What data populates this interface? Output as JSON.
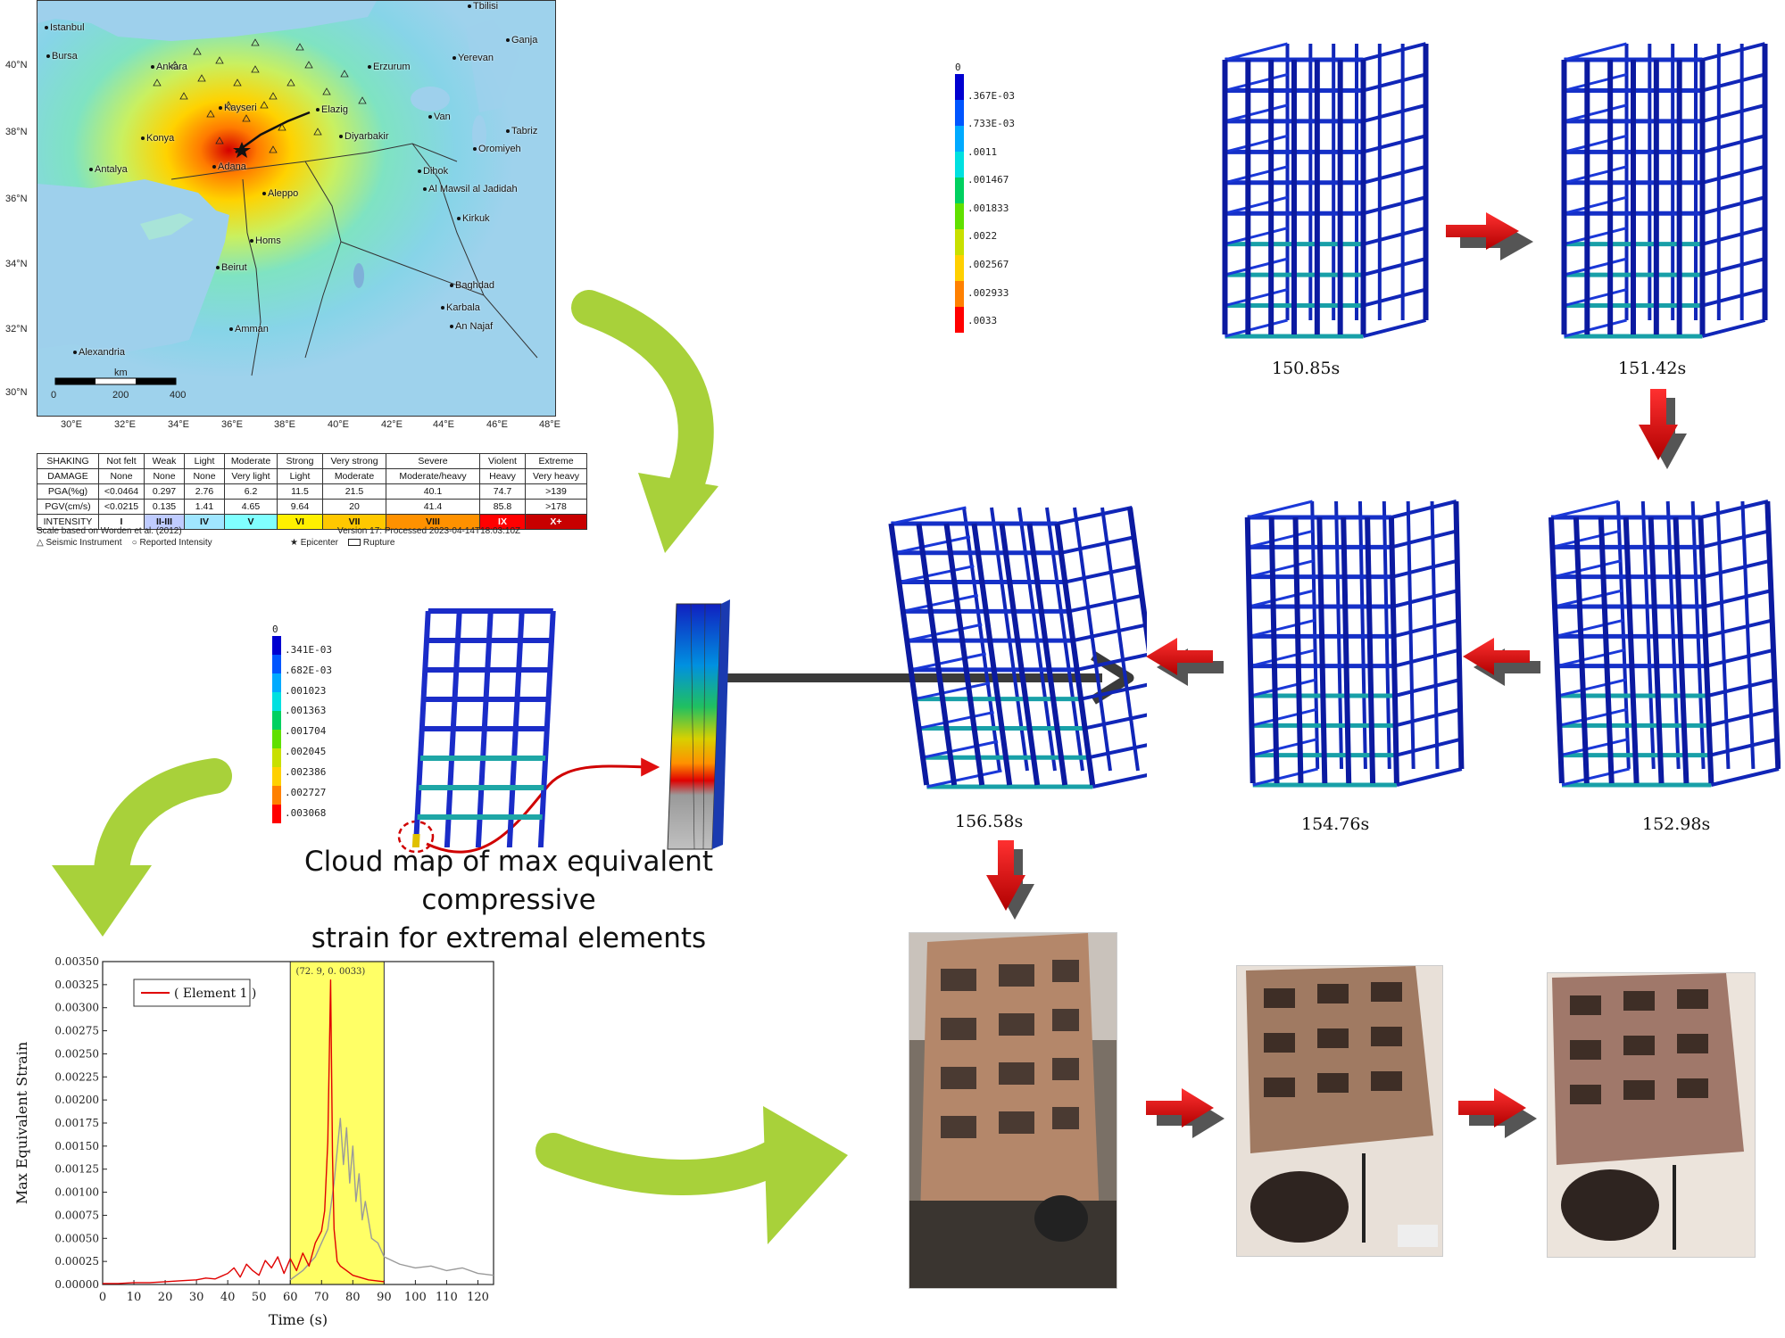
{
  "map": {
    "cities": [
      {
        "name": "Istanbul"
      },
      {
        "name": "Bursa"
      },
      {
        "name": "Ankara"
      },
      {
        "name": "Tbilisi"
      },
      {
        "name": "Ganja"
      },
      {
        "name": "Yerevan"
      },
      {
        "name": "Erzurum"
      },
      {
        "name": "Kayseri"
      },
      {
        "name": "Elazig"
      },
      {
        "name": "Van"
      },
      {
        "name": "Tabriz"
      },
      {
        "name": "Konya"
      },
      {
        "name": "Diyarbakir"
      },
      {
        "name": "Oromiyeh"
      },
      {
        "name": "Antalya"
      },
      {
        "name": "Adana"
      },
      {
        "name": "Dihok"
      },
      {
        "name": "Al Mawsil al Jadidah"
      },
      {
        "name": "Aleppo"
      },
      {
        "name": "Kirkuk"
      },
      {
        "name": "Homs"
      },
      {
        "name": "Beirut"
      },
      {
        "name": "Baghdad"
      },
      {
        "name": "Karbala"
      },
      {
        "name": "An Najaf"
      },
      {
        "name": "Amman"
      },
      {
        "name": "Alexandria"
      }
    ],
    "lat_ticks": [
      "40°N",
      "38°N",
      "36°N",
      "34°N",
      "32°N",
      "30°N"
    ],
    "lon_ticks": [
      "30°E",
      "32°E",
      "34°E",
      "36°E",
      "38°E",
      "40°E",
      "42°E",
      "44°E",
      "46°E",
      "48°E"
    ],
    "scale_unit": "km",
    "scale_ticks": [
      "0",
      "200",
      "400"
    ]
  },
  "intensity_table": {
    "rows": [
      {
        "label": "SHAKING",
        "cells": [
          "Not felt",
          "Weak",
          "Light",
          "Moderate",
          "Strong",
          "Very strong",
          "Severe",
          "Violent",
          "Extreme"
        ]
      },
      {
        "label": "DAMAGE",
        "cells": [
          "None",
          "None",
          "None",
          "Very light",
          "Light",
          "Moderate",
          "Moderate/heavy",
          "Heavy",
          "Very heavy"
        ]
      },
      {
        "label": "PGA(%g)",
        "cells": [
          "<0.0464",
          "0.297",
          "2.76",
          "6.2",
          "11.5",
          "21.5",
          "40.1",
          "74.7",
          ">139"
        ]
      },
      {
        "label": "PGV(cm/s)",
        "cells": [
          "<0.0215",
          "0.135",
          "1.41",
          "4.65",
          "9.64",
          "20",
          "41.4",
          "85.8",
          ">178"
        ]
      },
      {
        "label": "INTENSITY",
        "cells": [
          "I",
          "II-III",
          "IV",
          "V",
          "VI",
          "VII",
          "VIII",
          "IX",
          "X+"
        ]
      }
    ],
    "intensity_colors": [
      "#ffffff",
      "#bfccff",
      "#a0e6ff",
      "#80ffff",
      "#fff000",
      "#ffc800",
      "#ff9100",
      "#ff0000",
      "#c80000"
    ],
    "note_left": "Scale based on Worden et al. (2012)",
    "note_right": "Version 17: Processed 2023-04-14T18:03:10Z",
    "legend": {
      "instrument": "Seismic Instrument",
      "reported": "Reported Intensity",
      "epicenter": "Epicenter",
      "rupture": "Rupture"
    }
  },
  "legend_top": {
    "labels": [
      "0",
      ".367E-03",
      ".733E-03",
      ".0011",
      ".001467",
      ".001833",
      ".0022",
      ".002567",
      ".002933",
      ".0033"
    ]
  },
  "legend_mid": {
    "labels": [
      "0",
      ".341E-03",
      ".682E-03",
      ".001023",
      ".001363",
      ".001704",
      ".002045",
      ".002386",
      ".002727",
      ".003068"
    ]
  },
  "legend_colors": [
    "#0000d0",
    "#0055ff",
    "#00aaff",
    "#00e0e0",
    "#00d060",
    "#60e000",
    "#c8e000",
    "#ffd000",
    "#ff8000",
    "#ff0000"
  ],
  "buildings": {
    "t1": "150.85s",
    "t2": "151.42s",
    "t3": "152.98s",
    "t4": "154.76s",
    "t5": "156.58s"
  },
  "caption": {
    "line1": "Cloud map of max equivalent compressive",
    "line2": "strain for extremal elements"
  },
  "chart_data": {
    "type": "line",
    "title": "",
    "xlabel": "Time (s)",
    "ylabel": "Max Equivalent Strain",
    "xlim": [
      0,
      125
    ],
    "ylim": [
      0,
      0.0035
    ],
    "x_ticks": [
      0,
      10,
      20,
      30,
      40,
      50,
      60,
      70,
      80,
      90,
      100,
      110,
      120
    ],
    "y_ticks": [
      "0.00000",
      "0.00025",
      "0.00050",
      "0.00075",
      "0.00100",
      "0.00125",
      "0.00150",
      "0.00175",
      "0.00200",
      "0.00225",
      "0.00250",
      "0.00275",
      "0.00300",
      "0.00325",
      "0.00350"
    ],
    "highlight_range": [
      60,
      90
    ],
    "annotation": "(72. 9, 0. 0033)",
    "legend": "( Element 1 )",
    "series": [
      {
        "name": "( Element 1 )",
        "color": "#e00000",
        "x": [
          0,
          5,
          10,
          15,
          20,
          25,
          30,
          33,
          36,
          38,
          40,
          42,
          44,
          46,
          48,
          50,
          52,
          54,
          56,
          58,
          60,
          62,
          64,
          66,
          68,
          70,
          71,
          72,
          72.9,
          73.5,
          74,
          75,
          76,
          78,
          80,
          85,
          90
        ],
        "y": [
          1e-05,
          1e-05,
          2e-05,
          2e-05,
          3e-05,
          4e-05,
          5e-05,
          7e-05,
          6e-05,
          9e-05,
          0.00012,
          0.00018,
          8e-05,
          0.00022,
          0.00015,
          0.0001,
          0.00026,
          0.00018,
          0.0003,
          0.00012,
          0.00028,
          0.00015,
          0.00034,
          0.0002,
          0.00045,
          0.00058,
          0.0008,
          0.00155,
          0.0033,
          0.0014,
          0.0006,
          0.00025,
          0.0002,
          0.00015,
          0.0001,
          5e-05,
          3e-05
        ]
      },
      {
        "name": "",
        "color": "#9a9a9a",
        "x": [
          60,
          64,
          68,
          72,
          74,
          76,
          77,
          78,
          79,
          80,
          81,
          82,
          83,
          84,
          86,
          88,
          90,
          95,
          100,
          105,
          110,
          115,
          120,
          125
        ],
        "y": [
          5e-05,
          0.00015,
          0.0003,
          0.0006,
          0.0011,
          0.0018,
          0.0013,
          0.0017,
          0.0011,
          0.0015,
          0.0009,
          0.0012,
          0.0007,
          0.0009,
          0.0005,
          0.00045,
          0.0003,
          0.00022,
          0.00018,
          0.0002,
          0.00015,
          0.00018,
          0.00012,
          0.0001
        ]
      }
    ]
  }
}
